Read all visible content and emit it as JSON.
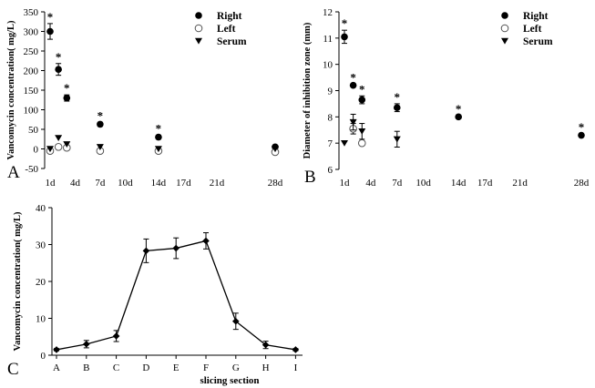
{
  "chart_data": [
    {
      "panel": "A",
      "type": "scatter",
      "ylabel": "Vancomycin concentration( mg/L)",
      "xlabel": "",
      "ylim": [
        -50,
        350
      ],
      "yticks": [
        -50,
        0,
        50,
        100,
        150,
        200,
        250,
        300,
        350
      ],
      "xlim": [
        1,
        28
      ],
      "xticks": [
        1,
        4,
        7,
        10,
        14,
        17,
        21,
        28
      ],
      "xtick_labels": [
        "1d",
        "4d",
        "7d",
        "10d",
        "14d",
        "17d",
        "21d",
        "28d"
      ],
      "legend": [
        "Right",
        "Left",
        "Serum"
      ],
      "legend_position": "top-right",
      "series": [
        {
          "name": "Right",
          "marker": "filled-circle",
          "x": [
            1,
            2,
            3,
            7,
            14,
            28
          ],
          "y": [
            300,
            203,
            130,
            63,
            30,
            5
          ],
          "err": [
            20,
            15,
            8,
            5,
            5,
            4
          ],
          "significant": [
            true,
            true,
            true,
            true,
            true,
            false
          ]
        },
        {
          "name": "Left",
          "marker": "open-circle",
          "x": [
            1,
            2,
            3,
            7,
            14,
            28
          ],
          "y": [
            -5,
            5,
            3,
            -5,
            -5,
            -8
          ],
          "err": [
            0,
            0,
            0,
            0,
            0,
            0
          ]
        },
        {
          "name": "Serum",
          "marker": "triangle-down",
          "x": [
            1,
            2,
            3,
            7,
            14,
            28
          ],
          "y": [
            0,
            28,
            12,
            5,
            0,
            0
          ],
          "err": [
            0,
            0,
            0,
            0,
            0,
            0
          ]
        }
      ]
    },
    {
      "panel": "B",
      "type": "scatter",
      "ylabel": "Diameter of inhibition zone (mm)",
      "xlabel": "",
      "ylim": [
        6,
        12
      ],
      "yticks": [
        6,
        7,
        8,
        9,
        10,
        11,
        12
      ],
      "xlim": [
        1,
        28
      ],
      "xticks": [
        1,
        4,
        7,
        10,
        14,
        17,
        21,
        28
      ],
      "xtick_labels": [
        "1d",
        "4d",
        "7d",
        "10d",
        "14d",
        "17d",
        "21d",
        "28d"
      ],
      "legend": [
        "Right",
        "Left",
        "Serum"
      ],
      "legend_position": "top-right",
      "series": [
        {
          "name": "Right",
          "marker": "filled-circle",
          "x": [
            1,
            2,
            3,
            7,
            14,
            28
          ],
          "y": [
            11.05,
            9.2,
            8.65,
            8.35,
            8.0,
            7.3
          ],
          "err": [
            0.25,
            0.05,
            0.15,
            0.15,
            0.05,
            0.05
          ],
          "significant": [
            true,
            true,
            true,
            true,
            true,
            true
          ]
        },
        {
          "name": "Left",
          "marker": "open-circle",
          "x": [
            2,
            3
          ],
          "y": [
            7.55,
            7.0
          ],
          "err": [
            0.2,
            0.0
          ]
        },
        {
          "name": "Serum",
          "marker": "triangle-down",
          "x": [
            1,
            2,
            3,
            7
          ],
          "y": [
            7.0,
            7.8,
            7.45,
            7.15
          ],
          "err": [
            0.0,
            0.3,
            0.3,
            0.3
          ]
        }
      ]
    },
    {
      "panel": "C",
      "type": "line",
      "ylabel": "Vancomycin concentration( mg/L)",
      "xlabel": "slicing section",
      "ylim": [
        0,
        40
      ],
      "yticks": [
        0,
        10,
        20,
        30,
        40
      ],
      "categories": [
        "A",
        "B",
        "C",
        "D",
        "E",
        "F",
        "G",
        "H",
        "I"
      ],
      "series": [
        {
          "name": "concentration",
          "values": [
            1.5,
            3,
            5.2,
            28.3,
            29,
            31,
            9.2,
            2.8,
            1.5
          ],
          "err": [
            0.3,
            1.0,
            1.5,
            3.2,
            2.8,
            2.2,
            2.2,
            1.0,
            0.3
          ]
        }
      ]
    }
  ],
  "panel_labels": [
    "A",
    "B",
    "C"
  ],
  "significance_symbol": "*"
}
